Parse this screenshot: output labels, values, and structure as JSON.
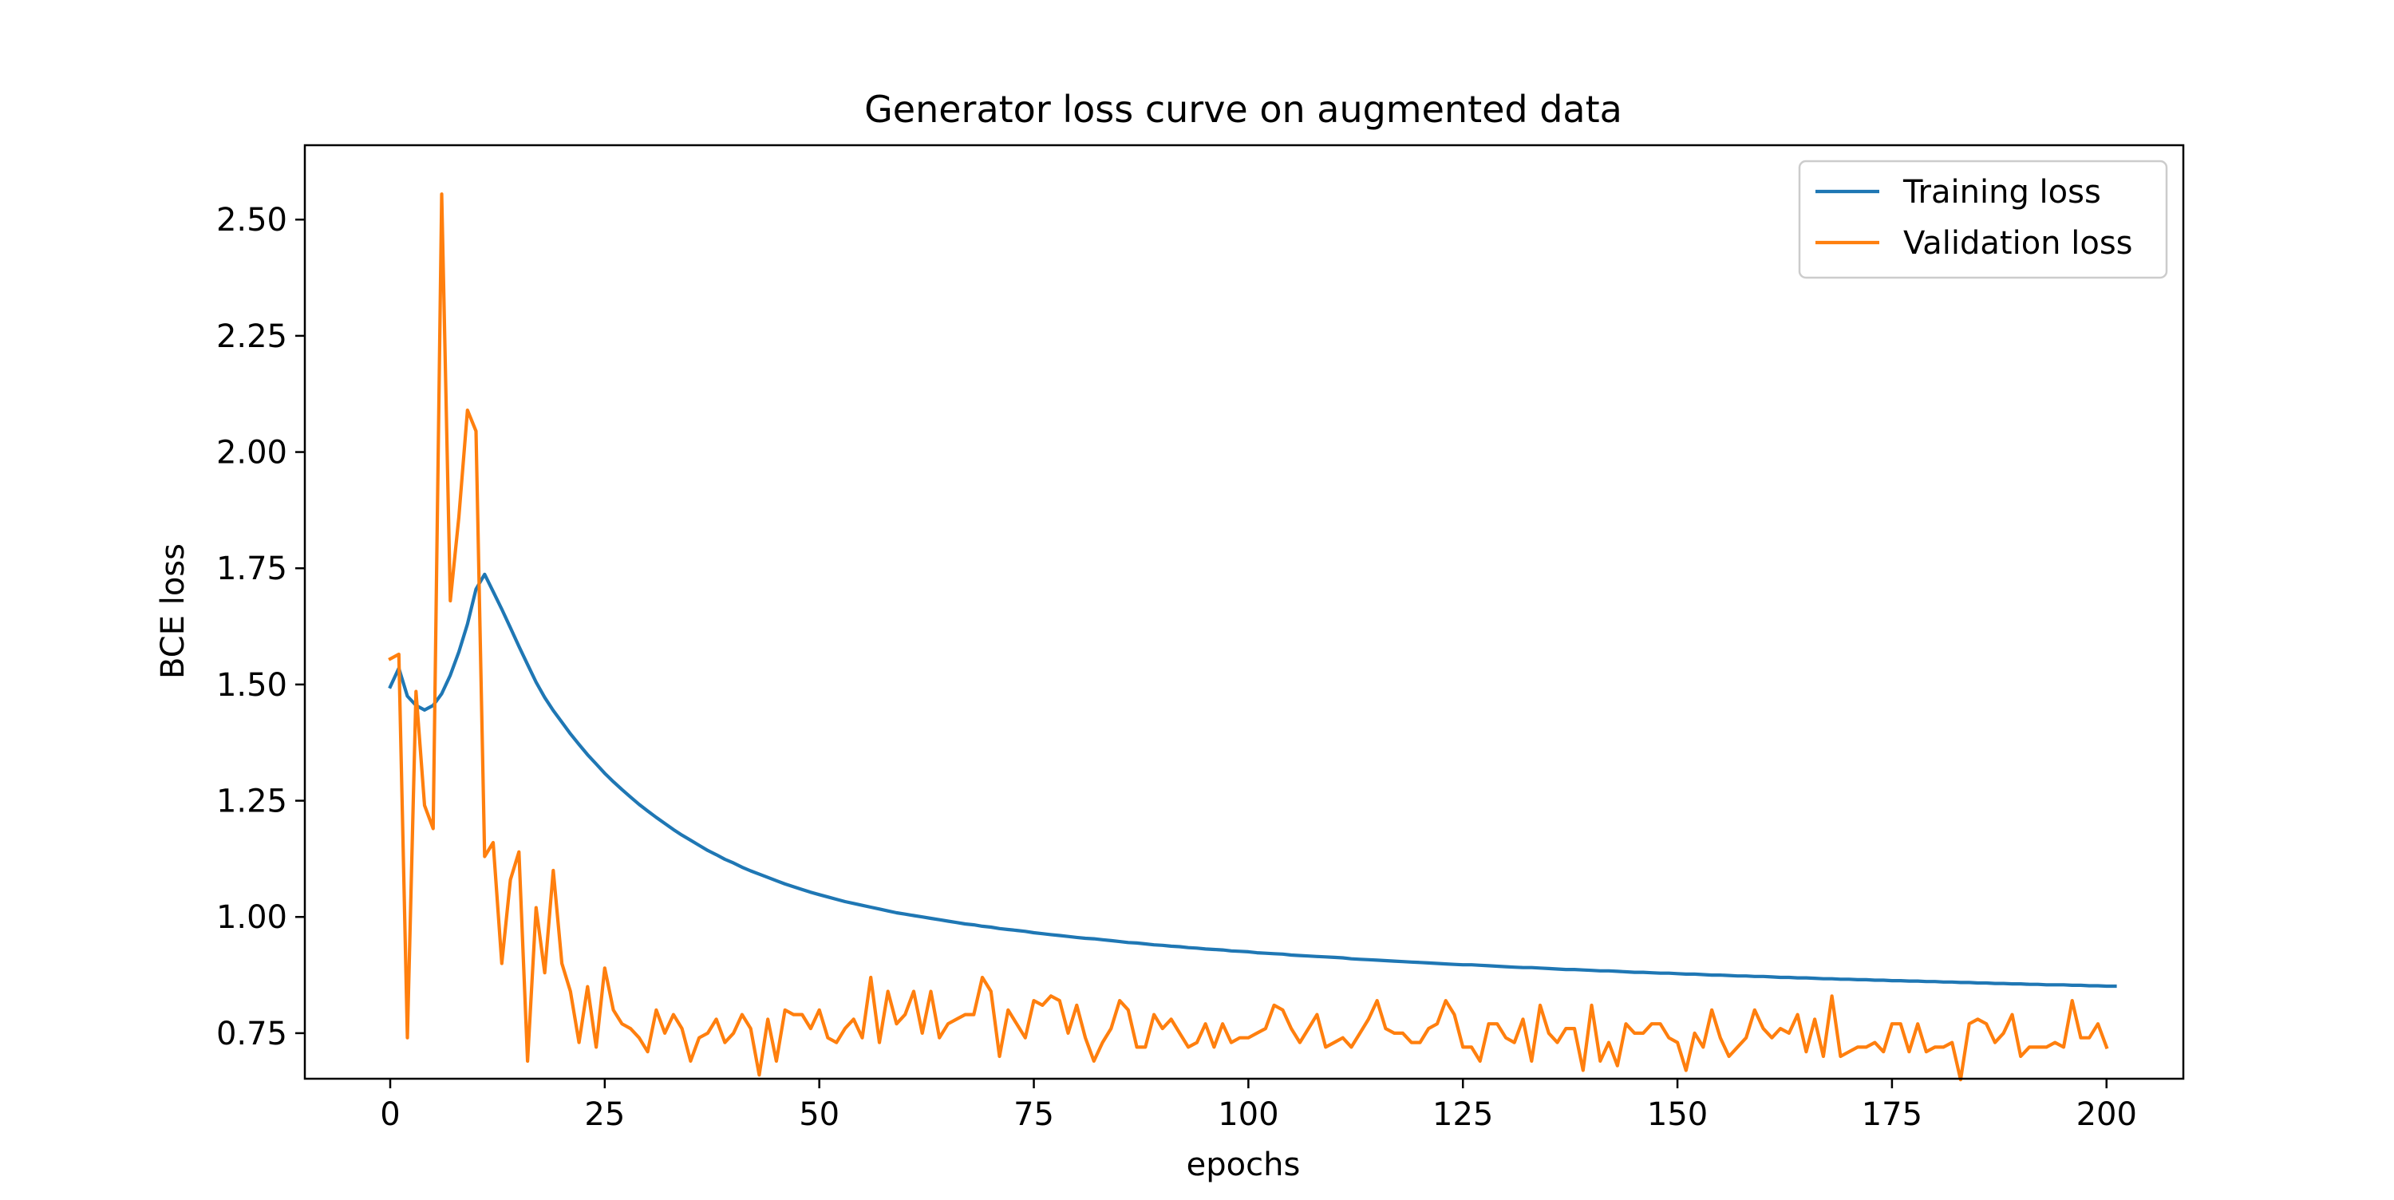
{
  "chart_data": {
    "type": "line",
    "title": "Generator loss curve  on augmented data",
    "xlabel": "epochs",
    "ylabel": "BCE loss",
    "xlim": [
      -9.95,
      208.95
    ],
    "ylim": [
      0.652,
      2.66
    ],
    "xticks": [
      0,
      25,
      50,
      75,
      100,
      125,
      150,
      175,
      200
    ],
    "yticks": [
      0.75,
      1.0,
      1.25,
      1.5,
      1.75,
      2.0,
      2.25,
      2.5
    ],
    "ytick_labels": [
      "0.75",
      "1.00",
      "1.25",
      "1.50",
      "1.75",
      "2.00",
      "2.25",
      "2.50"
    ],
    "xtick_labels": [
      "0",
      "25",
      "50",
      "75",
      "100",
      "125",
      "150",
      "175",
      "200"
    ],
    "grid": false,
    "legend_position": "upper right",
    "series": [
      {
        "name": "Training loss",
        "color": "#1f77b4",
        "x_start": 0,
        "x_step": 1,
        "values": [
          1.495,
          1.535,
          1.475,
          1.455,
          1.445,
          1.455,
          1.48,
          1.52,
          1.57,
          1.63,
          1.705,
          1.737,
          1.7,
          1.662,
          1.622,
          1.582,
          1.543,
          1.505,
          1.472,
          1.444,
          1.419,
          1.394,
          1.371,
          1.349,
          1.329,
          1.309,
          1.291,
          1.274,
          1.258,
          1.242,
          1.228,
          1.214,
          1.201,
          1.188,
          1.176,
          1.165,
          1.154,
          1.143,
          1.134,
          1.124,
          1.116,
          1.107,
          1.099,
          1.092,
          1.085,
          1.078,
          1.071,
          1.065,
          1.059,
          1.053,
          1.048,
          1.043,
          1.038,
          1.033,
          1.029,
          1.025,
          1.021,
          1.017,
          1.013,
          1.009,
          1.006,
          1.003,
          1.0,
          0.997,
          0.994,
          0.991,
          0.988,
          0.985,
          0.983,
          0.98,
          0.978,
          0.975,
          0.973,
          0.971,
          0.969,
          0.966,
          0.964,
          0.962,
          0.96,
          0.958,
          0.956,
          0.954,
          0.953,
          0.951,
          0.949,
          0.947,
          0.945,
          0.944,
          0.942,
          0.94,
          0.939,
          0.937,
          0.936,
          0.934,
          0.933,
          0.931,
          0.93,
          0.929,
          0.927,
          0.926,
          0.925,
          0.923,
          0.922,
          0.921,
          0.92,
          0.918,
          0.917,
          0.916,
          0.915,
          0.914,
          0.913,
          0.912,
          0.91,
          0.909,
          0.908,
          0.907,
          0.906,
          0.905,
          0.904,
          0.903,
          0.902,
          0.901,
          0.9,
          0.899,
          0.898,
          0.897,
          0.897,
          0.896,
          0.895,
          0.894,
          0.893,
          0.892,
          0.891,
          0.891,
          0.89,
          0.889,
          0.888,
          0.887,
          0.887,
          0.886,
          0.885,
          0.884,
          0.884,
          0.883,
          0.882,
          0.881,
          0.881,
          0.88,
          0.879,
          0.879,
          0.878,
          0.877,
          0.877,
          0.876,
          0.875,
          0.875,
          0.874,
          0.873,
          0.873,
          0.872,
          0.872,
          0.871,
          0.87,
          0.87,
          0.869,
          0.869,
          0.868,
          0.867,
          0.867,
          0.866,
          0.866,
          0.865,
          0.865,
          0.864,
          0.864,
          0.863,
          0.863,
          0.862,
          0.862,
          0.861,
          0.861,
          0.86,
          0.86,
          0.859,
          0.859,
          0.858,
          0.858,
          0.857,
          0.857,
          0.856,
          0.856,
          0.855,
          0.855,
          0.854,
          0.854,
          0.854,
          0.853,
          0.853,
          0.852,
          0.852,
          0.851,
          0.851
        ]
      },
      {
        "name": "Validation loss",
        "color": "#ff7f0e",
        "x_start": 0,
        "x_step": 1,
        "values": [
          1.555,
          1.565,
          0.74,
          1.485,
          1.24,
          1.19,
          2.555,
          1.68,
          1.86,
          2.09,
          2.045,
          1.13,
          1.16,
          0.9,
          1.08,
          1.14,
          0.69,
          1.02,
          0.88,
          1.1,
          0.9,
          0.84,
          0.73,
          0.85,
          0.72,
          0.89,
          0.8,
          0.77,
          0.76,
          0.74,
          0.71,
          0.8,
          0.75,
          0.79,
          0.76,
          0.69,
          0.74,
          0.75,
          0.78,
          0.73,
          0.75,
          0.79,
          0.76,
          0.66,
          0.78,
          0.69,
          0.8,
          0.79,
          0.79,
          0.76,
          0.8,
          0.74,
          0.73,
          0.76,
          0.78,
          0.74,
          0.87,
          0.73,
          0.84,
          0.77,
          0.79,
          0.84,
          0.75,
          0.84,
          0.74,
          0.77,
          0.78,
          0.79,
          0.79,
          0.87,
          0.84,
          0.7,
          0.8,
          0.77,
          0.74,
          0.82,
          0.81,
          0.83,
          0.82,
          0.75,
          0.81,
          0.74,
          0.69,
          0.73,
          0.76,
          0.82,
          0.8,
          0.72,
          0.72,
          0.79,
          0.76,
          0.78,
          0.75,
          0.72,
          0.73,
          0.77,
          0.72,
          0.77,
          0.73,
          0.74,
          0.74,
          0.75,
          0.76,
          0.81,
          0.8,
          0.76,
          0.73,
          0.76,
          0.79,
          0.72,
          0.73,
          0.74,
          0.72,
          0.75,
          0.78,
          0.82,
          0.76,
          0.75,
          0.75,
          0.73,
          0.73,
          0.76,
          0.77,
          0.82,
          0.79,
          0.72,
          0.72,
          0.69,
          0.77,
          0.77,
          0.74,
          0.73,
          0.78,
          0.69,
          0.81,
          0.75,
          0.73,
          0.76,
          0.76,
          0.67,
          0.81,
          0.69,
          0.73,
          0.68,
          0.77,
          0.75,
          0.75,
          0.77,
          0.77,
          0.74,
          0.73,
          0.67,
          0.75,
          0.72,
          0.8,
          0.74,
          0.7,
          0.72,
          0.74,
          0.8,
          0.76,
          0.74,
          0.76,
          0.75,
          0.79,
          0.71,
          0.78,
          0.7,
          0.83,
          0.7,
          0.71,
          0.72,
          0.72,
          0.73,
          0.71,
          0.77,
          0.77,
          0.71,
          0.77,
          0.71,
          0.72,
          0.72,
          0.73,
          0.65,
          0.77,
          0.78,
          0.77,
          0.73,
          0.75,
          0.79,
          0.7,
          0.72,
          0.72,
          0.72,
          0.73,
          0.72,
          0.82,
          0.74,
          0.74,
          0.77,
          0.72
        ]
      }
    ]
  }
}
